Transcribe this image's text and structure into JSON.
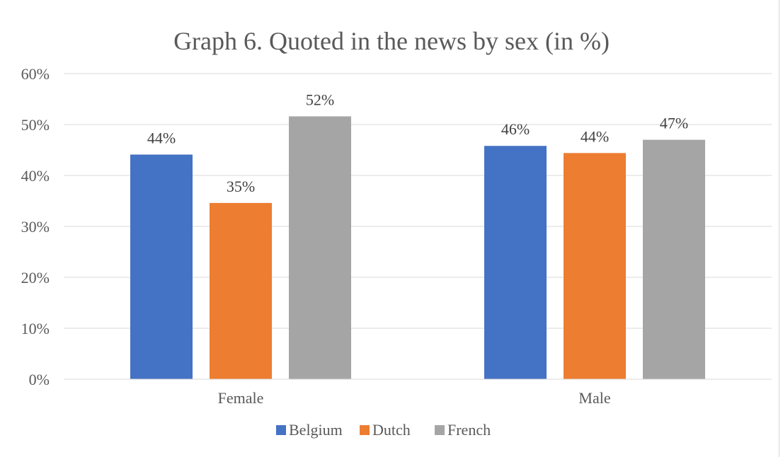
{
  "chart_data": {
    "type": "bar",
    "title": "Graph 6. Quoted in the news by sex (in %)",
    "xlabel": "",
    "ylabel": "",
    "categories": [
      "Female",
      "Male"
    ],
    "series": [
      {
        "name": "Belgium",
        "color": "#4472C4",
        "values": [
          44.1,
          45.8
        ],
        "labels": [
          "44%",
          "46%"
        ]
      },
      {
        "name": "Dutch",
        "color": "#ED7D31",
        "values": [
          34.6,
          44.4
        ],
        "labels": [
          "35%",
          "44%"
        ]
      },
      {
        "name": "French",
        "color": "#A5A5A5",
        "values": [
          51.6,
          47.0
        ],
        "labels": [
          "52%",
          "47%"
        ]
      }
    ],
    "ylim": [
      0,
      60
    ],
    "yticks": [
      0,
      10,
      20,
      30,
      40,
      50,
      60
    ],
    "ytick_labels": [
      "0%",
      "10%",
      "20%",
      "30%",
      "40%",
      "50%",
      "60%"
    ],
    "grid": true,
    "legend_position": "bottom"
  }
}
